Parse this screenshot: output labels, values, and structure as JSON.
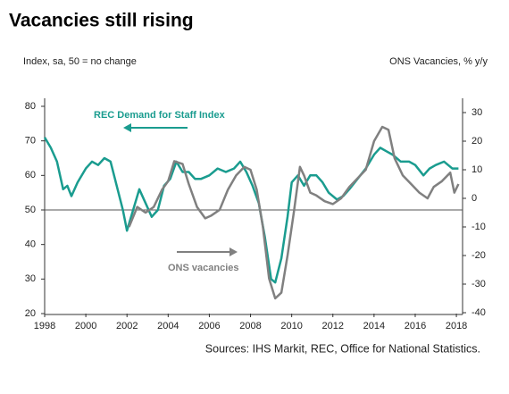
{
  "chart_data": {
    "type": "line",
    "title": "Vacancies still rising",
    "y_label": "Index, sa, 50 = no change",
    "y2_label": "ONS Vacancies, % y/y",
    "source": "Sources: IHS Markit, REC, Office for National Statistics.",
    "xlim": [
      1998,
      2018.3
    ],
    "xticks": [
      1998,
      2000,
      2002,
      2004,
      2006,
      2008,
      2010,
      2012,
      2014,
      2016,
      2018
    ],
    "ylim": [
      20,
      80
    ],
    "yticks": [
      20,
      30,
      40,
      50,
      60,
      70,
      80
    ],
    "y2lim": [
      -40,
      30
    ],
    "y2ticks": [
      -40,
      -30,
      -20,
      -10,
      0,
      10,
      20,
      30
    ],
    "reference_line": 50,
    "grid": false,
    "series": [
      {
        "name": "REC Demand for Staff Index",
        "color": "#1a9c8f",
        "axis": "y",
        "x": [
          1998.0,
          1998.3,
          1998.6,
          1998.9,
          1999.1,
          1999.3,
          1999.6,
          2000.0,
          2000.3,
          2000.6,
          2000.9,
          2001.2,
          2001.5,
          2001.8,
          2002.0,
          2002.3,
          2002.6,
          2002.9,
          2003.2,
          2003.5,
          2003.8,
          2004.1,
          2004.4,
          2004.7,
          2005.0,
          2005.3,
          2005.6,
          2006.0,
          2006.4,
          2006.8,
          2007.2,
          2007.5,
          2007.8,
          2008.1,
          2008.4,
          2008.7,
          2009.0,
          2009.2,
          2009.5,
          2009.8,
          2010.0,
          2010.3,
          2010.6,
          2010.9,
          2011.2,
          2011.5,
          2011.8,
          2012.2,
          2012.5,
          2012.8,
          2013.2,
          2013.6,
          2014.0,
          2014.3,
          2014.6,
          2014.9,
          2015.3,
          2015.7,
          2016.0,
          2016.4,
          2016.7,
          2017.0,
          2017.4,
          2017.8,
          2018.1
        ],
        "values": [
          71,
          68,
          64,
          56,
          57,
          54,
          58,
          62,
          64,
          63,
          65,
          64,
          57,
          50,
          44,
          50,
          56,
          52,
          48,
          50,
          57,
          59,
          64,
          61,
          61,
          59,
          59,
          60,
          62,
          61,
          62,
          64,
          61,
          57,
          52,
          42,
          30,
          29,
          36,
          48,
          58,
          60,
          57,
          60,
          60,
          58,
          55,
          53,
          54,
          56,
          59,
          62,
          66,
          68,
          67,
          66,
          64,
          64,
          63,
          60,
          62,
          63,
          64,
          62,
          62
        ]
      },
      {
        "name": "ONS vacancies",
        "color": "#808080",
        "axis": "y2",
        "x": [
          2002.1,
          2002.5,
          2002.9,
          2003.3,
          2003.7,
          2004.0,
          2004.3,
          2004.7,
          2005.0,
          2005.4,
          2005.8,
          2006.1,
          2006.5,
          2006.9,
          2007.3,
          2007.7,
          2008.0,
          2008.3,
          2008.6,
          2008.9,
          2009.2,
          2009.5,
          2009.8,
          2010.1,
          2010.4,
          2010.6,
          2010.9,
          2011.2,
          2011.6,
          2012.0,
          2012.4,
          2012.8,
          2013.2,
          2013.6,
          2014.0,
          2014.4,
          2014.7,
          2015.0,
          2015.4,
          2015.8,
          2016.2,
          2016.6,
          2016.9,
          2017.3,
          2017.7,
          2017.9,
          2018.1
        ],
        "values": [
          -10,
          -3,
          -5,
          -3,
          3,
          6,
          13,
          12,
          5,
          -3,
          -7,
          -6,
          -4,
          3,
          8,
          11,
          10,
          3,
          -10,
          -28,
          -35,
          -33,
          -20,
          -5,
          11,
          8,
          2,
          1,
          -1,
          -2,
          0,
          4,
          7,
          10,
          20,
          25,
          24,
          14,
          8,
          5,
          2,
          0,
          4,
          6,
          9,
          2,
          5
        ]
      }
    ]
  }
}
